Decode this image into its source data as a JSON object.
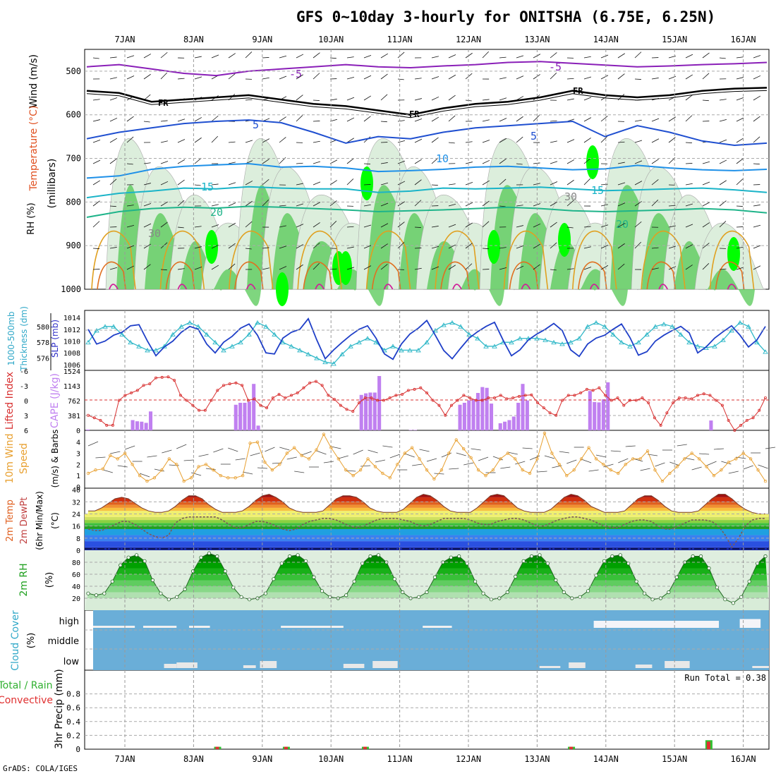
{
  "title": "GFS 0~10day 3-hourly for ONITSHA (6.75E, 6.25N)",
  "footer": "GrADS: COLA/IGES",
  "colors": {
    "rh_green": "#54c854",
    "rh_light": "#dceedc",
    "rh_bright": "#00ff00",
    "temp_purple": "#8a1fb8",
    "temp_blue": "#1f4fd0",
    "temp_sky": "#1e90e8",
    "temp_teal": "#1ab4c8",
    "temp_seagreen": "#1fb48a",
    "temp_orange": "#e0a020",
    "slp_line": "#1f3fc8",
    "thickness_line": "#30b8c8",
    "li_line": "#d83030",
    "cape_bar": "#c080f0",
    "wind_line": "#e8a030",
    "dewpt_line": "#7a5a5a",
    "cloud_bg": "#6aaed8",
    "cloud_fill": "#e8e8e8",
    "precip_total": "#30c030",
    "precip_conv": "#e03030"
  },
  "panel_labels": {
    "p1": [
      "Wind (m/s)",
      "Temperature (°C)",
      "RH (%)",
      "(millibars)"
    ],
    "p2": [
      "1000-500mb",
      "Thickness (dm)",
      "SLP (mb)"
    ],
    "p3": [
      "Lifted Index",
      "CAPE (J/kg)"
    ],
    "p4": [
      "10m Wind",
      "Speed",
      "(m/s) & Barbs"
    ],
    "p5": [
      "2m Temp",
      "2m DewPt",
      "(6hr Min/Max)",
      "(°C)"
    ],
    "p6": [
      "2m RH",
      "(%)"
    ],
    "p7": [
      "Cloud Cover",
      "(%)"
    ],
    "p8": [
      "Total / Rain",
      "Convective",
      "3hr Precip (mm)"
    ]
  },
  "chart_data": [
    {
      "type": "heatmap",
      "name": "upper-air",
      "x_ticks": [
        "7JAN",
        "8JAN",
        "9JAN",
        "10JAN",
        "11JAN",
        "12JAN",
        "13JAN",
        "14JAN",
        "15JAN",
        "16JAN"
      ],
      "y_ticks": [
        "500",
        "600",
        "700",
        "800",
        "900",
        "1000"
      ],
      "ylim": [
        1000,
        450
      ],
      "contour_labels": [
        "-5",
        "-5",
        "FR",
        "FR",
        "FR",
        "5",
        "5",
        "10",
        "15",
        "15",
        "20",
        "20",
        "30",
        "30"
      ],
      "isotherms": [
        {
          "label": "-5",
          "level_mb": [
            490,
            485,
            495,
            505,
            510,
            500,
            495,
            490,
            485,
            490,
            492,
            488,
            485,
            480,
            478,
            482,
            486,
            490,
            488,
            485,
            483,
            480
          ],
          "color": "temp_purple"
        },
        {
          "label": "FR",
          "level_mb": [
            545,
            550,
            570,
            565,
            560,
            555,
            565,
            575,
            580,
            590,
            600,
            585,
            575,
            570,
            560,
            545,
            555,
            560,
            555,
            545,
            540,
            538
          ],
          "color": "#000000"
        },
        {
          "label": "5",
          "level_mb": [
            655,
            640,
            630,
            620,
            615,
            612,
            618,
            640,
            665,
            650,
            655,
            640,
            630,
            625,
            620,
            615,
            650,
            625,
            640,
            660,
            670,
            665
          ],
          "color": "temp_blue"
        },
        {
          "label": "10",
          "level_mb": [
            745,
            740,
            725,
            718,
            715,
            712,
            720,
            718,
            722,
            730,
            728,
            725,
            720,
            718,
            722,
            726,
            724,
            716,
            722,
            726,
            728,
            725
          ],
          "color": "temp_sky"
        },
        {
          "label": "15",
          "level_mb": [
            790,
            780,
            775,
            768,
            770,
            765,
            768,
            770,
            770,
            778,
            775,
            768,
            770,
            768,
            766,
            770,
            774,
            772,
            770,
            768,
            772,
            778
          ],
          "color": "temp_teal"
        },
        {
          "label": "20",
          "level_mb": [
            835,
            822,
            815,
            812,
            814,
            810,
            812,
            815,
            818,
            822,
            820,
            818,
            815,
            812,
            815,
            820,
            822,
            820,
            818,
            815,
            818,
            825
          ],
          "color": "temp_seagreen"
        }
      ]
    },
    {
      "type": "line",
      "name": "slp-thickness",
      "categories_count": 81,
      "series": [
        {
          "name": "SLP (mb)",
          "axis": "right",
          "ticks": [
            "1014",
            "1012",
            "1010",
            "1008",
            "1006"
          ],
          "ylim": [
            1005.5,
            1014.5
          ],
          "values": [
            1012,
            1009.5,
            1010,
            1011,
            1011.5,
            1012.6,
            1012.8,
            1010,
            1007.5,
            1009,
            1010,
            1011.5,
            1012.5,
            1012,
            1009.5,
            1008,
            1009.8,
            1010.8,
            1012.2,
            1012.9,
            1011,
            1008,
            1007.8,
            1010.5,
            1011.5,
            1012,
            1013.8,
            1010.2,
            1007,
            1008.5,
            1009.8,
            1011,
            1012,
            1012.6,
            1010.5,
            1007.8,
            1006.9,
            1009.5,
            1011.2,
            1012.2,
            1013.5,
            1011,
            1008.4,
            1007,
            1008.8,
            1010.5,
            1011.6,
            1012.5,
            1013.2,
            1010.2,
            1007.5,
            1008.5,
            1010.2,
            1011.2,
            1012,
            1013,
            1011.8,
            1008.5,
            1007.4,
            1009.5,
            1010.5,
            1011,
            1012,
            1012.9,
            1010.6,
            1007.6,
            1008.2,
            1010,
            1011,
            1011.8,
            1012.5,
            1011.4,
            1008,
            1009,
            1010.5,
            1011.6,
            1012.6,
            1011,
            1009,
            1010.2,
            1012.5
          ]
        },
        {
          "name": "1000-500mb Thickness (dm)",
          "axis": "left",
          "ticks": [
            "580",
            "578",
            "576"
          ],
          "ylim": [
            574.8,
            581.5
          ],
          "values": [
            578,
            579.5,
            580,
            580,
            579,
            578,
            577.5,
            577,
            577,
            577.5,
            579,
            580,
            580.5,
            580,
            579,
            578,
            577,
            577.5,
            578,
            579,
            580.5,
            580,
            579,
            578,
            577.5,
            577,
            576.5,
            576,
            575.5,
            575.3,
            576.5,
            577.5,
            578,
            578.5,
            578,
            577,
            577.5,
            577,
            577,
            577,
            578,
            579.5,
            580.2,
            580.5,
            580,
            579,
            578.5,
            577.5,
            577.5,
            578,
            578,
            578.5,
            578.5,
            578.5,
            578.3,
            578,
            577.8,
            578,
            578.5,
            580,
            580.5,
            580,
            579,
            578,
            577.5,
            578,
            579,
            580,
            580.3,
            580,
            579,
            578,
            577.5,
            577.3,
            577.5,
            578.3,
            579.5,
            580.5,
            580,
            578,
            576.8
          ]
        }
      ]
    },
    {
      "type": "bar",
      "name": "cape-lifted-index",
      "cape_ticks": [
        "1524",
        "1143",
        "762",
        "381",
        "0"
      ],
      "li_ticks": [
        "-6",
        "-3",
        "0",
        "3",
        "6"
      ],
      "cape_ylim": [
        0,
        1524
      ],
      "li_ylim": [
        -6,
        6
      ],
      "cape_values": [
        20,
        0,
        0,
        0,
        0,
        0,
        0,
        0,
        0,
        0,
        260,
        230,
        220,
        190,
        480,
        0,
        0,
        0,
        0,
        0,
        0,
        0,
        0,
        0,
        0,
        0,
        0,
        0,
        0,
        0,
        0,
        0,
        0,
        650,
        700,
        700,
        730,
        1180,
        120,
        0,
        0,
        0,
        0,
        0,
        0,
        0,
        0,
        0,
        0,
        0,
        0,
        0,
        0,
        0,
        0,
        0,
        0,
        0,
        0,
        0,
        0,
        900,
        940,
        960,
        960,
        1380,
        0,
        0,
        0,
        0,
        0,
        0,
        10,
        10,
        0,
        0,
        0,
        0,
        0,
        0,
        0,
        0,
        0,
        650,
        700,
        760,
        790,
        950,
        1100,
        1080,
        680,
        0,
        180,
        220,
        260,
        350,
        700,
        1180,
        760,
        0,
        0,
        0,
        0,
        0,
        0,
        0,
        0,
        0,
        0,
        0,
        0,
        0,
        1000,
        720,
        710,
        790,
        1220,
        0,
        0,
        0,
        0,
        0,
        0,
        0,
        0,
        0,
        0,
        0,
        0,
        0,
        0,
        0,
        0,
        0,
        0,
        0,
        0,
        0,
        0,
        250,
        0,
        0,
        0,
        0,
        0,
        0,
        0,
        0,
        0,
        0,
        0,
        0
      ],
      "li_values": [
        3,
        3.5,
        4,
        5,
        5,
        0,
        -1,
        -1.5,
        -2,
        -3,
        -3.3,
        -4.5,
        -4.6,
        -4.7,
        -4,
        -1,
        0,
        1,
        2,
        2,
        0,
        -2,
        -3,
        -3.3,
        -3.5,
        -3,
        0,
        -0.3,
        1,
        1.5,
        -0.5,
        -1.2,
        -0.5,
        -1,
        -1.5,
        -2.5,
        -3.5,
        -3.8,
        -3,
        -1,
        -0.2,
        1,
        1.8,
        2.2,
        0.5,
        -0.5,
        -0.5,
        0,
        0,
        -0.5,
        -1,
        -1.2,
        -2,
        -2.2,
        -2.5,
        -1.5,
        0,
        1,
        3,
        1,
        0,
        -1,
        -0.5,
        0,
        0,
        -0.5,
        -0.5,
        -1,
        -0.3,
        -0.5,
        -0.8,
        -1,
        -1.1,
        0.5,
        1.5,
        2.5,
        3,
        0,
        -1,
        -1,
        -1.5,
        -2.2,
        -2,
        -2.5,
        -1,
        0,
        -0.5,
        1,
        0,
        0,
        -0.5,
        0.5,
        3.5,
        5,
        2.5,
        0.5,
        -0.5,
        -0.5,
        -0.3,
        -1,
        -1.3,
        -1,
        0,
        1,
        4,
        6,
        5,
        4,
        3.5,
        2,
        -0.5
      ]
    },
    {
      "type": "line",
      "name": "10m-wind",
      "ticks": [
        "4",
        "3",
        "2",
        "1",
        "0"
      ],
      "ylim": [
        0,
        4.8
      ],
      "values": [
        1.2,
        1.5,
        1.6,
        2.8,
        2.5,
        3,
        2,
        1,
        0.5,
        0.8,
        1.5,
        2.5,
        2,
        0.5,
        0.8,
        1.8,
        2,
        1.5,
        1,
        0.8,
        0.8,
        1,
        3.9,
        4,
        2.2,
        1.5,
        2,
        3,
        3.5,
        2.8,
        2.5,
        3.3,
        4.7,
        3.5,
        2.5,
        1.5,
        1,
        1.5,
        2.5,
        1.8,
        1.2,
        0.8,
        2,
        3,
        3.5,
        2.5,
        1.5,
        0.7,
        1.5,
        3,
        4.2,
        3.4,
        2.6,
        1.5,
        1,
        1.5,
        2.5,
        3,
        2.5,
        1.5,
        1.2,
        2.5,
        4.8,
        3,
        2,
        1,
        1.5,
        2.5,
        3.5,
        2.5,
        2,
        1.5,
        1.2,
        2,
        2.5,
        2.5,
        3.2,
        1.5,
        0.5,
        1.2,
        1.8,
        2.5,
        3,
        2.5,
        1.8,
        1,
        1.5,
        2.2,
        2.5,
        3,
        2.5,
        1.5,
        0.5
      ]
    },
    {
      "type": "area",
      "name": "2m-temp",
      "ticks": [
        "40",
        "32",
        "24",
        "16",
        "8",
        "0"
      ],
      "ylim": [
        0,
        41
      ],
      "temp_values": [
        26,
        26,
        28,
        31,
        34,
        35,
        34,
        31,
        28,
        26,
        25,
        25,
        26,
        29,
        33,
        36,
        36,
        34,
        30,
        27,
        25,
        25,
        25,
        26,
        29,
        33,
        36,
        37,
        35,
        32,
        28,
        26,
        25,
        25,
        25,
        26,
        30,
        34,
        36,
        36,
        35,
        32,
        28,
        26,
        25,
        25,
        25,
        27,
        31,
        35,
        37,
        36,
        33,
        29,
        26,
        25,
        25,
        25,
        28,
        32,
        36,
        37,
        36,
        32,
        28,
        26,
        25,
        25,
        25,
        27,
        31,
        35,
        37,
        36,
        33,
        29,
        27,
        25,
        25,
        25,
        26,
        30,
        34,
        36,
        36,
        33,
        29,
        26,
        25,
        25,
        25,
        26,
        30,
        34,
        37,
        37,
        34,
        30,
        27,
        25,
        24,
        24
      ],
      "dewpt_values": [
        14,
        13,
        13,
        15,
        17,
        19,
        19,
        17,
        14,
        11,
        9,
        8,
        10,
        18,
        21,
        22,
        22,
        22,
        22,
        22,
        20,
        17,
        15,
        15,
        17,
        19,
        19,
        18,
        16,
        14,
        13,
        14,
        17,
        19,
        20,
        21,
        21,
        20,
        18,
        16,
        15,
        16,
        18,
        20,
        21,
        21,
        21,
        20,
        19,
        17,
        16,
        17,
        19,
        21,
        21,
        21,
        21,
        20,
        18,
        17,
        17,
        19,
        20,
        21,
        21,
        20,
        18,
        16,
        16,
        18,
        20,
        21,
        22,
        22,
        21,
        20,
        18,
        16,
        15,
        15,
        17,
        19,
        20,
        20,
        19,
        16,
        14,
        14,
        16,
        18,
        20,
        20,
        20,
        19,
        16,
        10,
        2,
        8,
        16,
        20,
        21,
        21
      ]
    },
    {
      "type": "area",
      "name": "2m-rh",
      "ticks": [
        "80",
        "60",
        "40",
        "20"
      ],
      "ylim": [
        0,
        100
      ],
      "values": [
        28,
        25,
        28,
        48,
        75,
        88,
        92,
        82,
        50,
        28,
        18,
        22,
        35,
        65,
        88,
        95,
        90,
        65,
        38,
        22,
        18,
        20,
        28,
        52,
        78,
        90,
        92,
        82,
        55,
        32,
        22,
        20,
        25,
        48,
        78,
        90,
        92,
        80,
        52,
        30,
        20,
        22,
        30,
        55,
        80,
        88,
        90,
        78,
        48,
        28,
        18,
        20,
        30,
        56,
        82,
        90,
        92,
        78,
        50,
        30,
        20,
        22,
        32,
        58,
        82,
        90,
        92,
        78,
        48,
        28,
        18,
        20,
        30,
        55,
        80,
        90,
        90,
        70,
        38,
        18,
        12,
        22,
        48,
        78,
        90
      ]
    },
    {
      "type": "bar",
      "name": "cloud-cover",
      "categories": [
        "high",
        "middle",
        "low"
      ],
      "high_blocks": [
        [
          0,
          10,
          0.8
        ],
        [
          12,
          20,
          0.6
        ],
        [
          23,
          28,
          0.6
        ],
        [
          45,
          60,
          0.4
        ],
        [
          79,
          86,
          0.6
        ],
        [
          120,
          150,
          0.4
        ],
        [
          155,
          160,
          0.5
        ]
      ],
      "low_blocks": [
        [
          17,
          20,
          0.6
        ],
        [
          20,
          25,
          0.8
        ],
        [
          36,
          39,
          0.4
        ],
        [
          40,
          44,
          1.0
        ],
        [
          60,
          65,
          0.6
        ],
        [
          67,
          73,
          1.0
        ],
        [
          107,
          112,
          0.3
        ],
        [
          114,
          118,
          0.8
        ],
        [
          130,
          134,
          0.5
        ],
        [
          137,
          143,
          1.0
        ],
        [
          158,
          162,
          0.3
        ]
      ]
    },
    {
      "type": "bar",
      "name": "precip",
      "annotation": "Run Total = 0.38",
      "ticks": [
        "0.8",
        "0.6",
        "0.4",
        "0.2",
        "0"
      ],
      "ylim": [
        0,
        1.0
      ],
      "bars": [
        {
          "day_index": 1.35,
          "total": 0.035,
          "convective": 0.035
        },
        {
          "day_index": 2.35,
          "total": 0.035,
          "convective": 0.035
        },
        {
          "day_index": 3.5,
          "total": 0.035,
          "convective": 0.035
        },
        {
          "day_index": 6.5,
          "total": 0.035,
          "convective": 0.035
        },
        {
          "day_index": 8.5,
          "total": 0.13,
          "convective": 0.11
        }
      ]
    }
  ]
}
